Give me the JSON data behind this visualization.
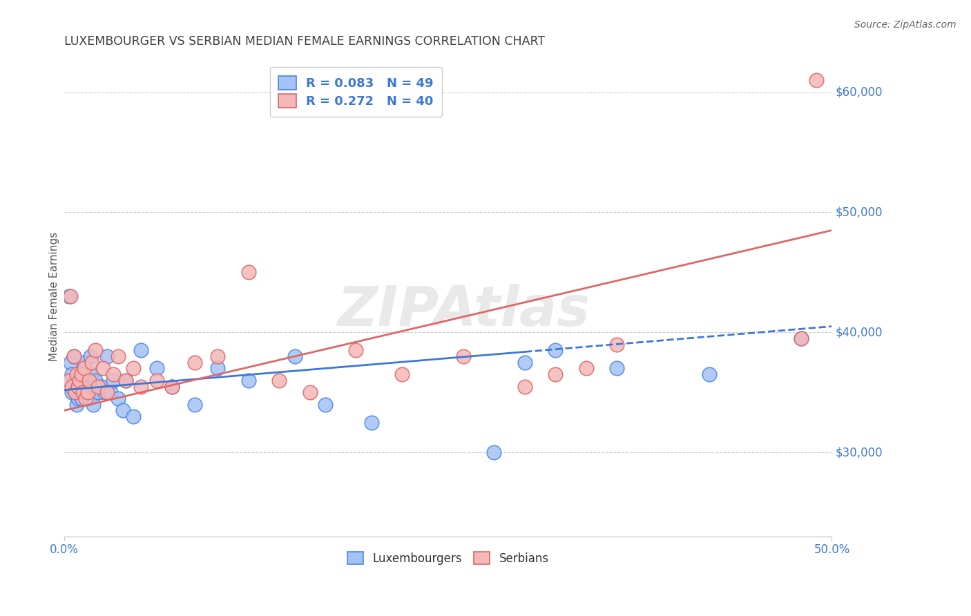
{
  "title": "LUXEMBOURGER VS SERBIAN MEDIAN FEMALE EARNINGS CORRELATION CHART",
  "source": "Source: ZipAtlas.com",
  "ylabel": "Median Female Earnings",
  "xlim": [
    0.0,
    0.5
  ],
  "ylim": [
    23000,
    63000
  ],
  "xtick_positions": [
    0.0,
    0.5
  ],
  "xtick_labels": [
    "0.0%",
    "50.0%"
  ],
  "ytick_values": [
    30000,
    40000,
    50000,
    60000
  ],
  "ytick_labels": [
    "$30,000",
    "$40,000",
    "$50,000",
    "$60,000"
  ],
  "blue_R": 0.083,
  "blue_N": 49,
  "pink_R": 0.272,
  "pink_N": 40,
  "blue_color": "#a4c2f4",
  "pink_color": "#f4b8b8",
  "blue_edge_color": "#4a86e8",
  "pink_edge_color": "#e06666",
  "blue_line_color": "#3c78d8",
  "pink_line_color": "#e06666",
  "legend_text_color": "#3c78d8",
  "title_color": "#404040",
  "watermark_text": "ZIPAtlas",
  "blue_line_solid_end": 0.3,
  "blue_line_x0": 0.0,
  "blue_line_y0": 35200,
  "blue_line_x1": 0.5,
  "blue_line_y1": 40500,
  "pink_line_x0": 0.0,
  "pink_line_y0": 33500,
  "pink_line_x1": 0.5,
  "pink_line_y1": 48500,
  "blue_x": [
    0.003,
    0.004,
    0.005,
    0.005,
    0.006,
    0.006,
    0.007,
    0.007,
    0.008,
    0.008,
    0.009,
    0.009,
    0.01,
    0.011,
    0.012,
    0.013,
    0.013,
    0.014,
    0.015,
    0.016,
    0.017,
    0.018,
    0.019,
    0.02,
    0.022,
    0.024,
    0.026,
    0.028,
    0.03,
    0.032,
    0.035,
    0.038,
    0.04,
    0.045,
    0.05,
    0.06,
    0.07,
    0.085,
    0.1,
    0.12,
    0.15,
    0.17,
    0.2,
    0.28,
    0.3,
    0.32,
    0.36,
    0.42,
    0.48
  ],
  "blue_y": [
    43000,
    37500,
    36500,
    35000,
    35800,
    38000,
    36000,
    35000,
    35500,
    34000,
    34500,
    36000,
    35500,
    34500,
    36000,
    35500,
    37500,
    35000,
    35000,
    34500,
    38000,
    36500,
    34000,
    36000,
    35000,
    35500,
    35000,
    38000,
    35000,
    36000,
    34500,
    33500,
    36000,
    33000,
    38500,
    37000,
    35500,
    34000,
    37000,
    36000,
    38000,
    34000,
    32500,
    30000,
    37500,
    38500,
    37000,
    36500,
    39500
  ],
  "pink_x": [
    0.003,
    0.004,
    0.005,
    0.006,
    0.007,
    0.008,
    0.009,
    0.01,
    0.011,
    0.012,
    0.013,
    0.014,
    0.015,
    0.016,
    0.018,
    0.02,
    0.022,
    0.025,
    0.028,
    0.032,
    0.035,
    0.04,
    0.045,
    0.05,
    0.06,
    0.07,
    0.085,
    0.1,
    0.12,
    0.14,
    0.16,
    0.19,
    0.22,
    0.26,
    0.3,
    0.32,
    0.34,
    0.36,
    0.48,
    0.49
  ],
  "pink_y": [
    36000,
    43000,
    35500,
    38000,
    35000,
    36500,
    35500,
    36000,
    36500,
    35000,
    37000,
    34500,
    35000,
    36000,
    37500,
    38500,
    35500,
    37000,
    35000,
    36500,
    38000,
    36000,
    37000,
    35500,
    36000,
    35500,
    37500,
    38000,
    45000,
    36000,
    35000,
    38500,
    36500,
    38000,
    35500,
    36500,
    37000,
    39000,
    39500,
    61000
  ]
}
